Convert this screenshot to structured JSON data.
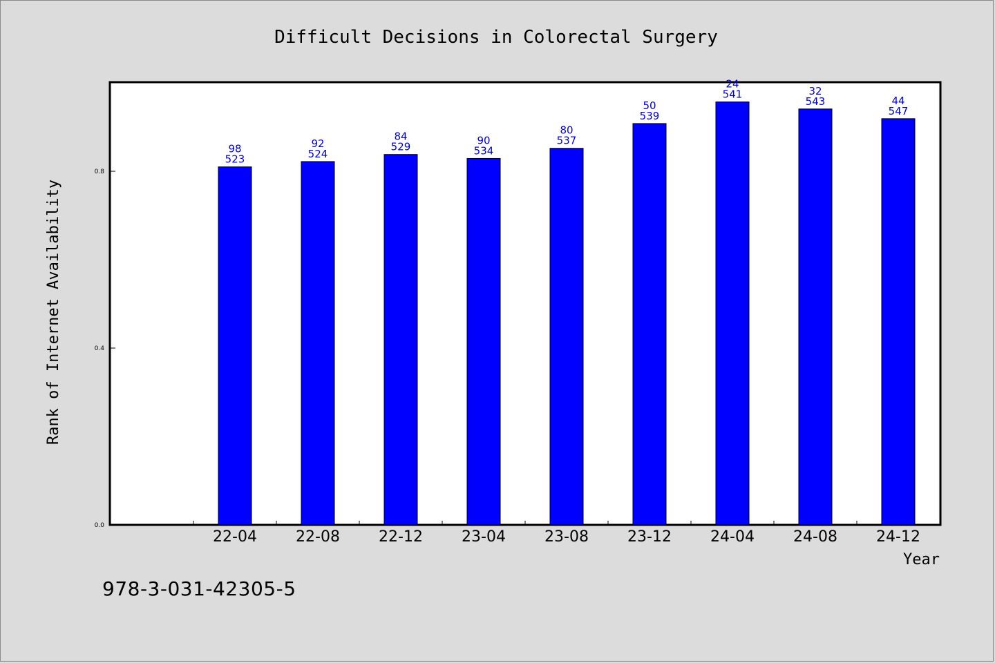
{
  "chart_data": {
    "type": "bar",
    "title": "Difficult Decisions in Colorectal Surgery",
    "xlabel": "Year",
    "ylabel": "Rank of Internet Availability",
    "categories": [
      "22-04",
      "22-08",
      "22-12",
      "23-04",
      "23-08",
      "23-12",
      "24-04",
      "24-08",
      "24-12"
    ],
    "values": [
      0.81,
      0.822,
      0.838,
      0.829,
      0.852,
      0.908,
      0.957,
      0.941,
      0.919
    ],
    "label_top": [
      "98",
      "92",
      "84",
      "90",
      "80",
      "50",
      "24",
      "32",
      "44"
    ],
    "label_bottom": [
      "523",
      "524",
      "529",
      "534",
      "537",
      "539",
      "541",
      "543",
      "547"
    ],
    "yticks": [
      {
        "value": 0.0,
        "label": "0.0"
      },
      {
        "value": 0.4,
        "label": "0.4"
      },
      {
        "value": 0.8,
        "label": "0.8"
      }
    ],
    "ylim": [
      0,
      1.0
    ],
    "bar_color": "#0000ff",
    "label_color": "#0000cc",
    "grid": false,
    "legend": "none"
  },
  "footer": {
    "isbn": "978-3-031-42305-5"
  }
}
